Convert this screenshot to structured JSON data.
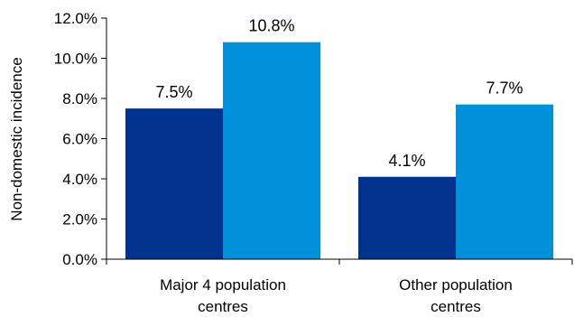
{
  "chart_data": {
    "type": "bar",
    "ylabel": "Non-domestic incidence",
    "xlabel": "",
    "ylim": [
      0,
      12
    ],
    "y_ticks": [
      "0.0%",
      "2.0%",
      "4.0%",
      "6.0%",
      "8.0%",
      "10.0%",
      "12.0%"
    ],
    "y_tick_values": [
      0,
      2,
      4,
      6,
      8,
      10,
      12
    ],
    "categories": [
      [
        "Major 4 population",
        "centres"
      ],
      [
        "Other population",
        "centres"
      ]
    ],
    "series": [
      {
        "color": "#00338d",
        "values": [
          7.5,
          4.1
        ],
        "labels": [
          "7.5%",
          "4.1%"
        ]
      },
      {
        "color": "#0091da",
        "values": [
          10.8,
          7.7
        ],
        "labels": [
          "10.8%",
          "7.7%"
        ]
      }
    ],
    "grid": false,
    "legend": "none"
  }
}
